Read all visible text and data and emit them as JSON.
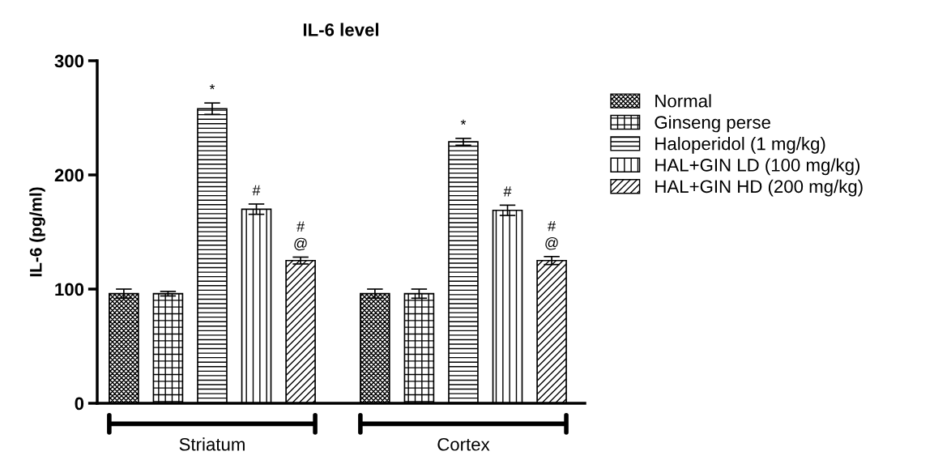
{
  "chart_data": {
    "type": "bar",
    "title": "IL-6 level",
    "ylabel": "IL-6 (pg/ml)",
    "categories": [
      "Striatum",
      "Cortex"
    ],
    "series": [
      {
        "name": "Normal",
        "color": "#000000",
        "values": [
          96,
          96
        ],
        "errors": [
          4,
          4
        ],
        "value_labels": [
          null,
          null
        ]
      },
      {
        "name": "Ginseng perse",
        "color": "#000000",
        "values": [
          96,
          96
        ],
        "errors": [
          2,
          4
        ],
        "value_labels": [
          null,
          null
        ]
      },
      {
        "name": "Haloperidol (1 mg/kg)",
        "color": "#000000",
        "values": [
          258,
          229
        ],
        "errors": [
          5,
          3
        ],
        "value_labels": [
          "*",
          "*"
        ]
      },
      {
        "name": "HAL+GIN LD (100 mg/kg)",
        "color": "#000000",
        "values": [
          170,
          169
        ],
        "errors": [
          4.5,
          4.5
        ],
        "value_labels": [
          "#",
          "#"
        ]
      },
      {
        "name": "HAL+GIN HD (200 mg/kg)",
        "color": "#000000",
        "values": [
          125,
          125
        ],
        "errors": [
          3,
          3.5
        ],
        "value_labels": [
          "#\n@",
          "#\n@"
        ]
      }
    ],
    "ylim": [
      0,
      300
    ],
    "yticks": [
      0,
      100,
      200,
      300
    ],
    "grid": false,
    "legend": "right"
  }
}
